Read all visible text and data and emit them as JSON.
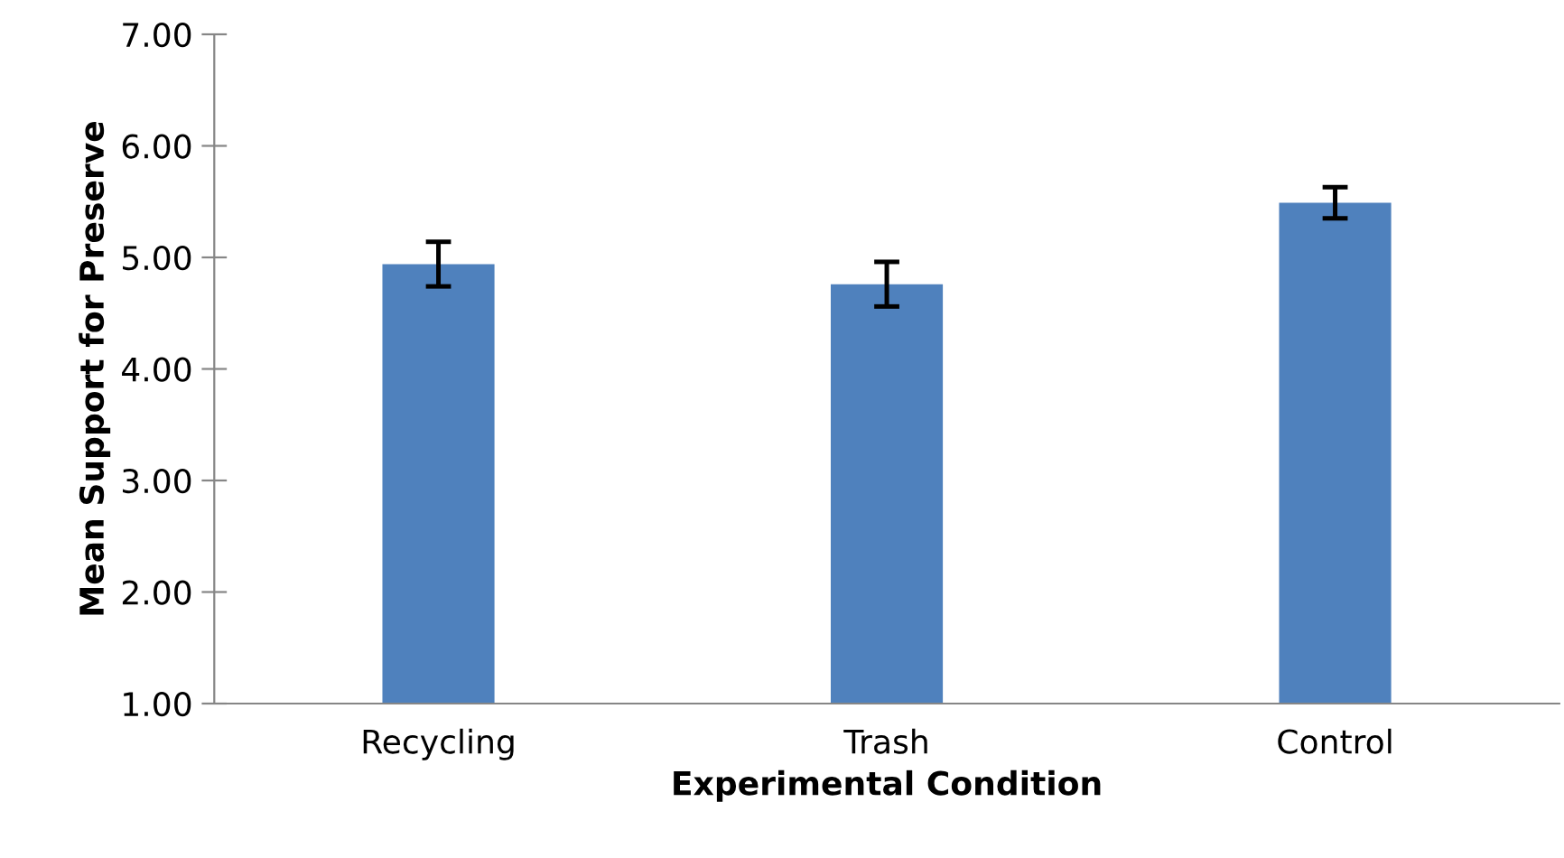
{
  "chart_data": {
    "type": "bar",
    "xlabel": "Experimental Condition",
    "ylabel": "Mean Support for Preserve",
    "categories": [
      "Recycling",
      "Trash",
      "Control"
    ],
    "values": [
      4.94,
      4.76,
      5.49
    ],
    "errors": [
      0.2,
      0.2,
      0.14
    ],
    "color": "#4f81bd",
    "ylim": [
      1.0,
      7.0
    ],
    "yticks": [
      {
        "value": 1,
        "label": "1.00"
      },
      {
        "value": 2,
        "label": "2.00"
      },
      {
        "value": 3,
        "label": "3.00"
      },
      {
        "value": 4,
        "label": "4.00"
      },
      {
        "value": 5,
        "label": "5.00"
      },
      {
        "value": 6,
        "label": "6.00"
      },
      {
        "value": 7,
        "label": "7.00"
      }
    ],
    "grid": false,
    "legend": false
  }
}
